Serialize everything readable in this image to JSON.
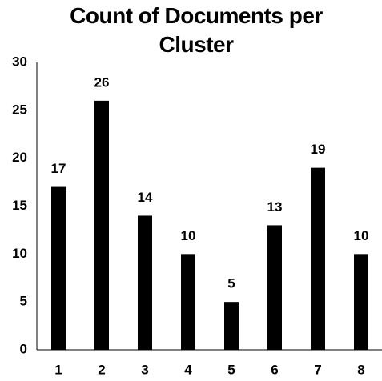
{
  "chart_data": {
    "type": "bar",
    "title": "Count of Documents per Cluster",
    "categories": [
      "1",
      "2",
      "3",
      "4",
      "5",
      "6",
      "7",
      "8"
    ],
    "values": [
      17,
      26,
      14,
      10,
      5,
      13,
      19,
      10
    ],
    "color": "#000000",
    "ylim": [
      0,
      30
    ],
    "yticks": [
      0,
      5,
      10,
      15,
      20,
      25,
      30
    ],
    "grid": false
  }
}
